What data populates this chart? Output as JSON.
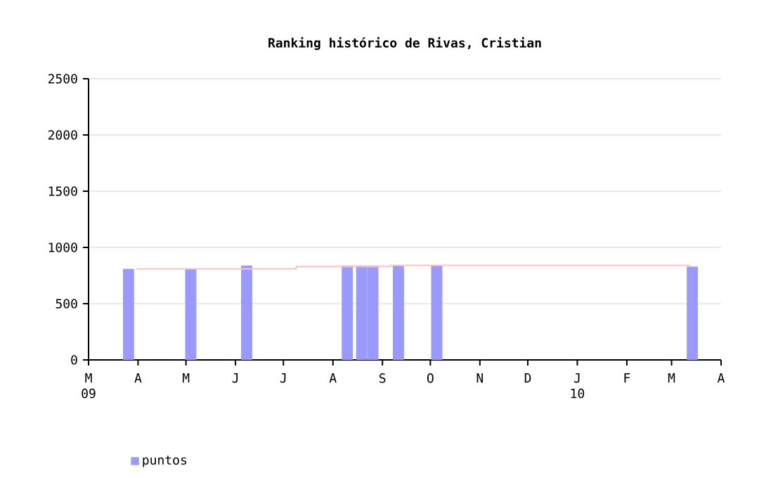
{
  "chart_data": {
    "type": "bar",
    "title": "Ranking histórico de Rivas, Cristian",
    "series": [
      {
        "name": "puntos",
        "color": "#9999ff",
        "x": [
          "2009-03-26",
          "2009-05-04",
          "2009-06-08",
          "2009-08-10",
          "2009-08-19",
          "2009-08-26",
          "2009-09-11",
          "2009-10-05",
          "2010-03-14"
        ],
        "values": [
          810,
          810,
          840,
          840,
          840,
          840,
          840,
          840,
          830
        ]
      },
      {
        "type": "step",
        "color": "#ffc0c0",
        "x": [
          "2009-03-31",
          "2009-07-09",
          "2009-09-06",
          "2010-03-13"
        ],
        "values": [
          810,
          830,
          840,
          840
        ]
      }
    ],
    "xlim": [
      "2009-03-01",
      "2010-04-01"
    ],
    "xticks": [
      {
        "value": "2009-03-01",
        "label": "M 09"
      },
      {
        "value": "2009-04-01",
        "label": "A"
      },
      {
        "value": "2009-05-01",
        "label": "M"
      },
      {
        "value": "2009-06-01",
        "label": "J"
      },
      {
        "value": "2009-07-01",
        "label": "J"
      },
      {
        "value": "2009-08-01",
        "label": "A"
      },
      {
        "value": "2009-09-01",
        "label": "S"
      },
      {
        "value": "2009-10-01",
        "label": "O"
      },
      {
        "value": "2009-11-01",
        "label": "N"
      },
      {
        "value": "2009-12-01",
        "label": "D"
      },
      {
        "value": "2010-01-01",
        "label": "J 10"
      },
      {
        "value": "2010-02-01",
        "label": "F"
      },
      {
        "value": "2010-03-01",
        "label": "M"
      },
      {
        "value": "2010-04-01",
        "label": "A"
      }
    ],
    "ylim": [
      0,
      2500
    ],
    "yticks": [
      0,
      500,
      1000,
      1500,
      2000,
      2500
    ],
    "grid": "y",
    "legend": "bottom left"
  }
}
